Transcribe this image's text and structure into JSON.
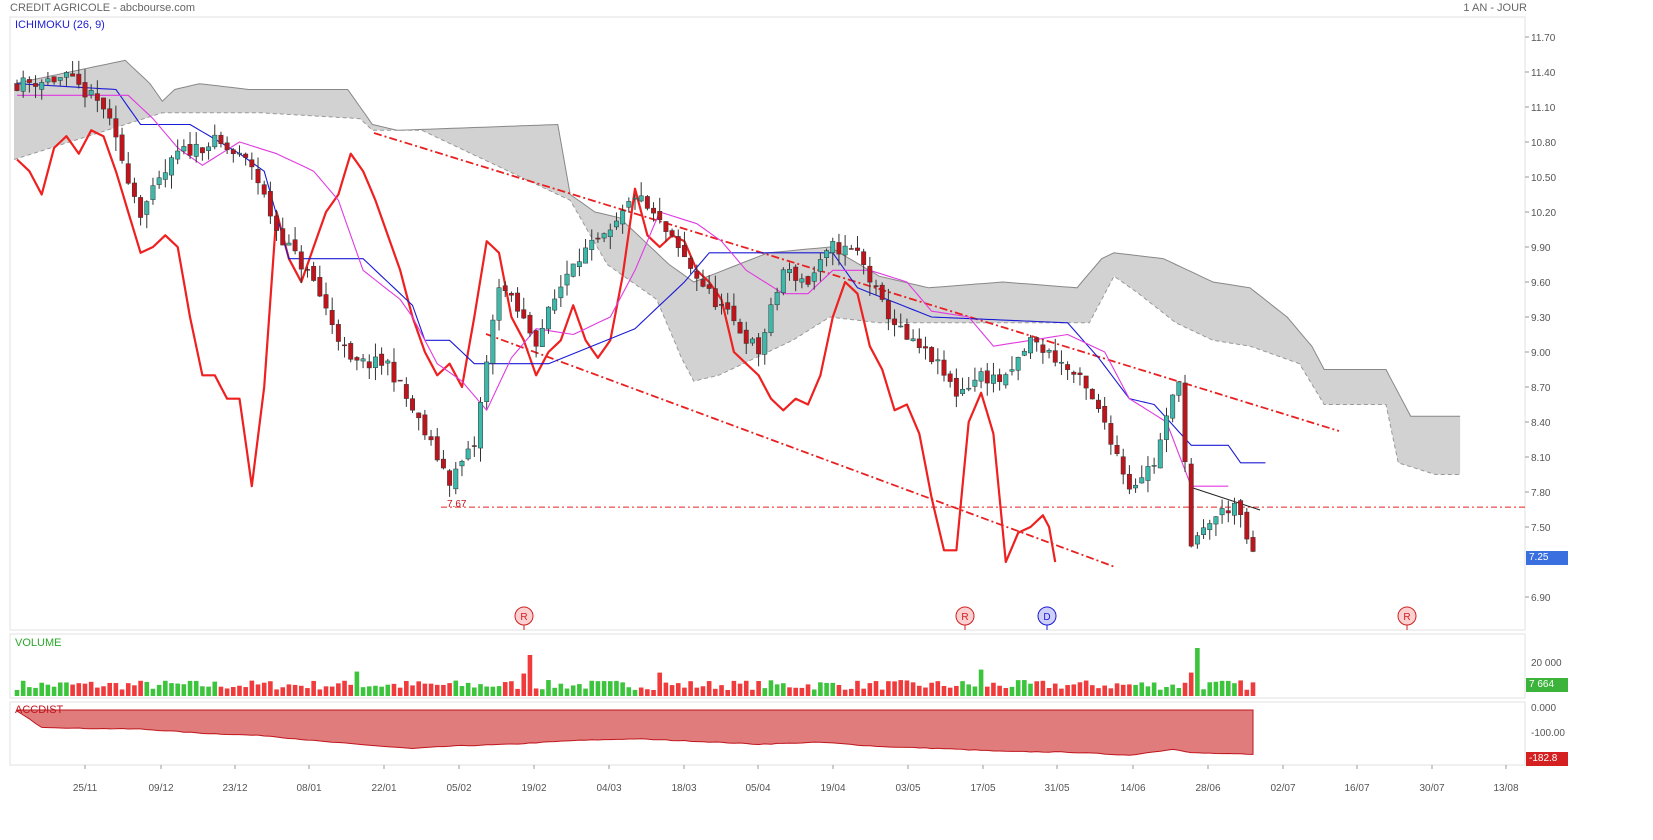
{
  "header": {
    "title": "CREDIT AGRICOLE - abcbourse.com",
    "period": "1 AN - JOUR"
  },
  "panels": {
    "price_indicator": "ICHIMOKU (26, 9)",
    "volume_indicator": "VOLUME",
    "accdist_indicator": "ACCDIST"
  },
  "colors": {
    "up_candle": "#3cb9aa",
    "down_candle": "#c0141c",
    "kijun": "#1b1bd6",
    "tenkan": "#e03be0",
    "chikou": "#ee2020",
    "cloud": "#d0d0d0",
    "volume_up": "#3cc43c",
    "volume_down": "#ef3b3b",
    "accdist_fill": "#e07c7c",
    "price_tag": "#3a6fe0",
    "volume_tag": "#3cb43c",
    "accdist_tag": "#d42020"
  },
  "chart_data": {
    "type": "candlestick",
    "title": "CREDIT AGRICOLE",
    "price_axis": {
      "ylim": [
        6.6,
        11.9
      ],
      "ticks": [
        "11.70",
        "11.40",
        "11.10",
        "10.80",
        "10.50",
        "10.20",
        "9.90",
        "9.60",
        "9.30",
        "9.00",
        "8.70",
        "8.40",
        "8.10",
        "7.80",
        "7.50",
        "6.90"
      ]
    },
    "x_ticks": [
      "25/11",
      "09/12",
      "23/12",
      "08/01",
      "22/01",
      "05/02",
      "19/02",
      "04/03",
      "18/03",
      "05/04",
      "19/04",
      "03/05",
      "17/05",
      "31/05",
      "14/06",
      "28/06",
      "02/07",
      "16/07",
      "30/07",
      "13/08"
    ],
    "last_price": "7.25",
    "support_level": {
      "value": 7.67,
      "label": "7.67"
    },
    "signals": [
      {
        "date": "19/02",
        "label": "R"
      },
      {
        "date": "17/05",
        "label": "R"
      },
      {
        "date": "31/05",
        "label": "D"
      },
      {
        "date": "30/07",
        "label": "R"
      }
    ],
    "close_anchors": [
      [
        0,
        11.3
      ],
      [
        8,
        11.35
      ],
      [
        14,
        11.1
      ],
      [
        20,
        10.2
      ],
      [
        26,
        10.7
      ],
      [
        32,
        10.8
      ],
      [
        38,
        10.6
      ],
      [
        42,
        10.05
      ],
      [
        48,
        9.6
      ],
      [
        54,
        8.9
      ],
      [
        60,
        8.9
      ],
      [
        64,
        8.5
      ],
      [
        70,
        7.9
      ],
      [
        74,
        8.2
      ],
      [
        78,
        9.6
      ],
      [
        84,
        9.1
      ],
      [
        90,
        9.8
      ],
      [
        96,
        10.0
      ],
      [
        100,
        10.35
      ],
      [
        104,
        10.1
      ],
      [
        108,
        9.8
      ],
      [
        112,
        9.5
      ],
      [
        116,
        9.25
      ],
      [
        120,
        9.0
      ],
      [
        124,
        9.7
      ],
      [
        128,
        9.6
      ],
      [
        132,
        9.9
      ],
      [
        136,
        9.85
      ],
      [
        140,
        9.4
      ],
      [
        144,
        9.1
      ],
      [
        148,
        8.95
      ],
      [
        152,
        8.65
      ],
      [
        156,
        8.8
      ],
      [
        160,
        8.75
      ],
      [
        164,
        9.1
      ],
      [
        168,
        8.95
      ],
      [
        172,
        8.75
      ],
      [
        176,
        8.4
      ],
      [
        180,
        7.85
      ],
      [
        184,
        8.05
      ],
      [
        187,
        8.6
      ],
      [
        188,
        8.8
      ],
      [
        190,
        7.3
      ],
      [
        193,
        7.55
      ],
      [
        197,
        7.7
      ],
      [
        200,
        7.25
      ]
    ],
    "kijun_anchors": [
      [
        0,
        11.3
      ],
      [
        16,
        11.25
      ],
      [
        20,
        10.95
      ],
      [
        28,
        10.95
      ],
      [
        36,
        10.7
      ],
      [
        40,
        10.55
      ],
      [
        44,
        9.8
      ],
      [
        56,
        9.8
      ],
      [
        60,
        9.6
      ],
      [
        64,
        9.4
      ],
      [
        66,
        9.1
      ],
      [
        70,
        9.1
      ],
      [
        74,
        8.9
      ],
      [
        86,
        8.9
      ],
      [
        100,
        9.2
      ],
      [
        104,
        9.4
      ],
      [
        108,
        9.6
      ],
      [
        112,
        9.85
      ],
      [
        120,
        9.85
      ],
      [
        132,
        9.85
      ],
      [
        136,
        9.55
      ],
      [
        148,
        9.3
      ],
      [
        170,
        9.25
      ],
      [
        175,
        8.95
      ],
      [
        180,
        8.6
      ],
      [
        184,
        8.55
      ],
      [
        190,
        8.2
      ],
      [
        196,
        8.2
      ],
      [
        198,
        8.05
      ],
      [
        202,
        8.05
      ]
    ],
    "tenkan_anchors": [
      [
        0,
        11.2
      ],
      [
        10,
        11.2
      ],
      [
        18,
        11.2
      ],
      [
        22,
        11.0
      ],
      [
        26,
        10.75
      ],
      [
        30,
        10.6
      ],
      [
        36,
        10.8
      ],
      [
        42,
        10.7
      ],
      [
        48,
        10.55
      ],
      [
        52,
        10.3
      ],
      [
        56,
        9.7
      ],
      [
        62,
        9.45
      ],
      [
        64,
        9.3
      ],
      [
        68,
        8.9
      ],
      [
        72,
        8.75
      ],
      [
        76,
        8.5
      ],
      [
        80,
        8.95
      ],
      [
        84,
        9.2
      ],
      [
        90,
        9.15
      ],
      [
        96,
        9.3
      ],
      [
        100,
        9.7
      ],
      [
        104,
        10.2
      ],
      [
        110,
        10.1
      ],
      [
        114,
        9.95
      ],
      [
        118,
        9.7
      ],
      [
        124,
        9.5
      ],
      [
        128,
        9.5
      ],
      [
        132,
        9.7
      ],
      [
        138,
        9.7
      ],
      [
        144,
        9.6
      ],
      [
        148,
        9.35
      ],
      [
        154,
        9.3
      ],
      [
        158,
        9.05
      ],
      [
        164,
        9.1
      ],
      [
        170,
        9.15
      ],
      [
        176,
        9.0
      ],
      [
        180,
        8.6
      ],
      [
        186,
        8.4
      ],
      [
        190,
        7.85
      ],
      [
        196,
        7.85
      ]
    ],
    "chikou_anchors": [
      [
        0,
        10.65
      ],
      [
        2,
        10.55
      ],
      [
        4,
        10.35
      ],
      [
        6,
        10.75
      ],
      [
        8,
        10.85
      ],
      [
        10,
        10.7
      ],
      [
        12,
        10.9
      ],
      [
        14,
        10.85
      ],
      [
        16,
        10.55
      ],
      [
        18,
        10.2
      ],
      [
        20,
        9.85
      ],
      [
        22,
        9.9
      ],
      [
        24,
        10.0
      ],
      [
        26,
        9.9
      ],
      [
        28,
        9.3
      ],
      [
        30,
        8.8
      ],
      [
        32,
        8.8
      ],
      [
        34,
        8.6
      ],
      [
        36,
        8.6
      ],
      [
        38,
        7.85
      ],
      [
        40,
        8.7
      ],
      [
        42,
        10.2
      ],
      [
        44,
        9.8
      ],
      [
        46,
        9.6
      ],
      [
        48,
        9.9
      ],
      [
        50,
        10.2
      ],
      [
        52,
        10.35
      ],
      [
        54,
        10.7
      ],
      [
        56,
        10.55
      ],
      [
        58,
        10.3
      ],
      [
        60,
        10.0
      ],
      [
        62,
        9.7
      ],
      [
        64,
        9.3
      ],
      [
        66,
        9.0
      ],
      [
        68,
        8.8
      ],
      [
        70,
        8.9
      ],
      [
        72,
        8.7
      ],
      [
        74,
        9.3
      ],
      [
        76,
        9.95
      ],
      [
        78,
        9.85
      ],
      [
        80,
        9.3
      ],
      [
        82,
        9.1
      ],
      [
        84,
        8.8
      ],
      [
        86,
        9.0
      ],
      [
        88,
        9.1
      ],
      [
        90,
        9.4
      ],
      [
        92,
        9.1
      ],
      [
        94,
        8.95
      ],
      [
        96,
        9.1
      ],
      [
        98,
        9.65
      ],
      [
        100,
        10.4
      ],
      [
        102,
        10.0
      ],
      [
        104,
        9.9
      ],
      [
        106,
        10.0
      ],
      [
        108,
        9.95
      ],
      [
        110,
        9.7
      ],
      [
        112,
        9.6
      ],
      [
        114,
        9.45
      ],
      [
        116,
        9.0
      ],
      [
        118,
        8.9
      ],
      [
        120,
        8.8
      ],
      [
        122,
        8.6
      ],
      [
        124,
        8.5
      ],
      [
        126,
        8.6
      ],
      [
        128,
        8.55
      ],
      [
        130,
        8.8
      ],
      [
        132,
        9.3
      ],
      [
        134,
        9.6
      ],
      [
        136,
        9.5
      ],
      [
        138,
        9.05
      ],
      [
        140,
        8.85
      ],
      [
        142,
        8.5
      ],
      [
        144,
        8.55
      ],
      [
        146,
        8.3
      ],
      [
        148,
        7.75
      ],
      [
        150,
        7.3
      ],
      [
        152,
        7.3
      ],
      [
        154,
        8.4
      ],
      [
        156,
        8.65
      ],
      [
        158,
        8.3
      ],
      [
        160,
        7.2
      ],
      [
        162,
        7.45
      ],
      [
        164,
        7.5
      ],
      [
        166,
        7.6
      ],
      [
        167,
        7.5
      ],
      [
        168,
        7.2
      ]
    ],
    "cloud_top_anchors": [
      [
        0,
        11.3
      ],
      [
        18,
        11.5
      ],
      [
        22,
        11.3
      ],
      [
        24,
        11.15
      ],
      [
        26,
        11.25
      ],
      [
        30,
        11.3
      ],
      [
        38,
        11.25
      ],
      [
        54,
        11.25
      ],
      [
        56,
        11.1
      ],
      [
        58,
        10.95
      ],
      [
        62,
        10.9
      ],
      [
        88,
        10.95
      ],
      [
        90,
        10.35
      ],
      [
        94,
        10.2
      ],
      [
        98,
        10.15
      ],
      [
        106,
        9.75
      ],
      [
        110,
        9.6
      ],
      [
        122,
        9.85
      ],
      [
        132,
        9.9
      ],
      [
        140,
        9.65
      ],
      [
        148,
        9.55
      ],
      [
        160,
        9.6
      ],
      [
        172,
        9.55
      ],
      [
        176,
        9.8
      ],
      [
        178,
        9.85
      ],
      [
        186,
        9.8
      ],
      [
        194,
        9.6
      ],
      [
        200,
        9.55
      ],
      [
        206,
        9.3
      ],
      [
        210,
        9.05
      ],
      [
        212,
        8.85
      ],
      [
        222,
        8.85
      ],
      [
        226,
        8.45
      ],
      [
        234,
        8.45
      ]
    ],
    "cloud_bottom_anchors": [
      [
        0,
        10.65
      ],
      [
        18,
        10.95
      ],
      [
        24,
        11.05
      ],
      [
        40,
        11.05
      ],
      [
        56,
        11.0
      ],
      [
        58,
        10.9
      ],
      [
        66,
        10.9
      ],
      [
        90,
        10.3
      ],
      [
        96,
        9.75
      ],
      [
        104,
        9.45
      ],
      [
        108,
        8.95
      ],
      [
        110,
        8.75
      ],
      [
        114,
        8.8
      ],
      [
        120,
        8.95
      ],
      [
        126,
        9.1
      ],
      [
        132,
        9.3
      ],
      [
        140,
        9.25
      ],
      [
        152,
        9.25
      ],
      [
        166,
        9.25
      ],
      [
        174,
        9.25
      ],
      [
        178,
        9.65
      ],
      [
        182,
        9.5
      ],
      [
        188,
        9.25
      ],
      [
        194,
        9.1
      ],
      [
        200,
        9.05
      ],
      [
        208,
        8.9
      ],
      [
        212,
        8.55
      ],
      [
        222,
        8.55
      ],
      [
        224,
        8.05
      ],
      [
        230,
        7.95
      ],
      [
        234,
        7.95
      ]
    ],
    "volume_axis": {
      "ticks": [
        "20 000"
      ]
    },
    "volume_last": "7 664",
    "accdist_axis": {
      "ticks": [
        "0.000",
        "-100.00"
      ]
    },
    "accdist_last": "-182.8",
    "accdist_anchors": [
      [
        0,
        -5
      ],
      [
        4,
        -70
      ],
      [
        10,
        -75
      ],
      [
        20,
        -78
      ],
      [
        30,
        -95
      ],
      [
        40,
        -105
      ],
      [
        50,
        -130
      ],
      [
        60,
        -150
      ],
      [
        64,
        -158
      ],
      [
        70,
        -148
      ],
      [
        80,
        -140
      ],
      [
        90,
        -125
      ],
      [
        100,
        -118
      ],
      [
        110,
        -128
      ],
      [
        120,
        -140
      ],
      [
        130,
        -132
      ],
      [
        140,
        -150
      ],
      [
        150,
        -158
      ],
      [
        160,
        -170
      ],
      [
        170,
        -172
      ],
      [
        180,
        -185
      ],
      [
        187,
        -160
      ],
      [
        190,
        -175
      ],
      [
        200,
        -182
      ]
    ]
  }
}
